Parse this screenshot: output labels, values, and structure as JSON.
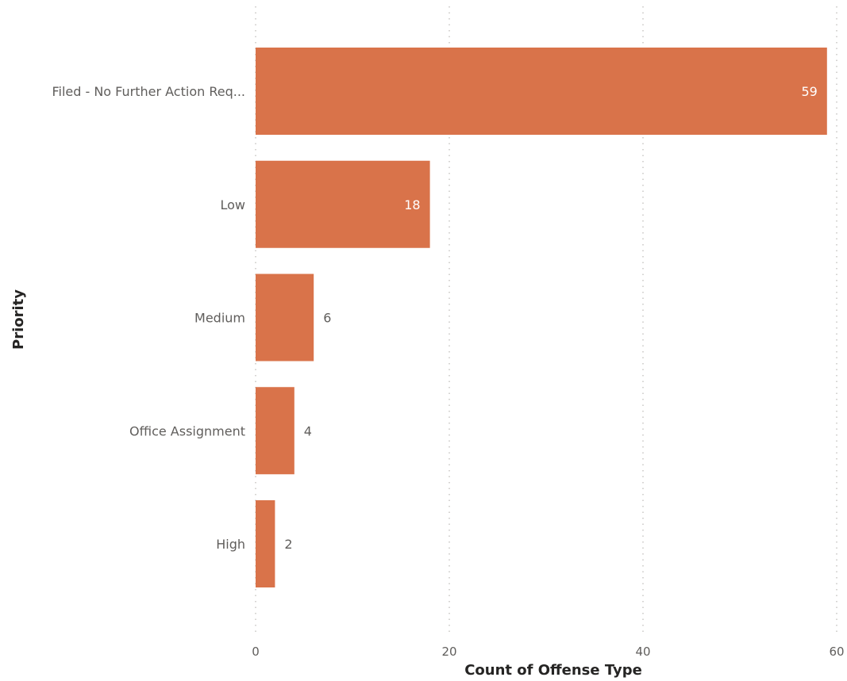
{
  "chart_data": {
    "type": "bar",
    "orientation": "horizontal",
    "categories": [
      "Filed - No Further Action Req...",
      "Low",
      "Medium",
      "Office Assignment",
      "High"
    ],
    "values": [
      59,
      18,
      6,
      4,
      2
    ],
    "data_labels": [
      "59",
      "18",
      "6",
      "4",
      "2"
    ],
    "xlabel": "Count of Offense Type",
    "ylabel": "Priority",
    "xlim": [
      0,
      60
    ],
    "x_ticks": [
      0,
      20,
      40,
      60
    ],
    "x_tick_labels": [
      "0",
      "20",
      "40",
      "60"
    ],
    "grid": "vertical-dotted",
    "bar_color": "#d9734a"
  }
}
